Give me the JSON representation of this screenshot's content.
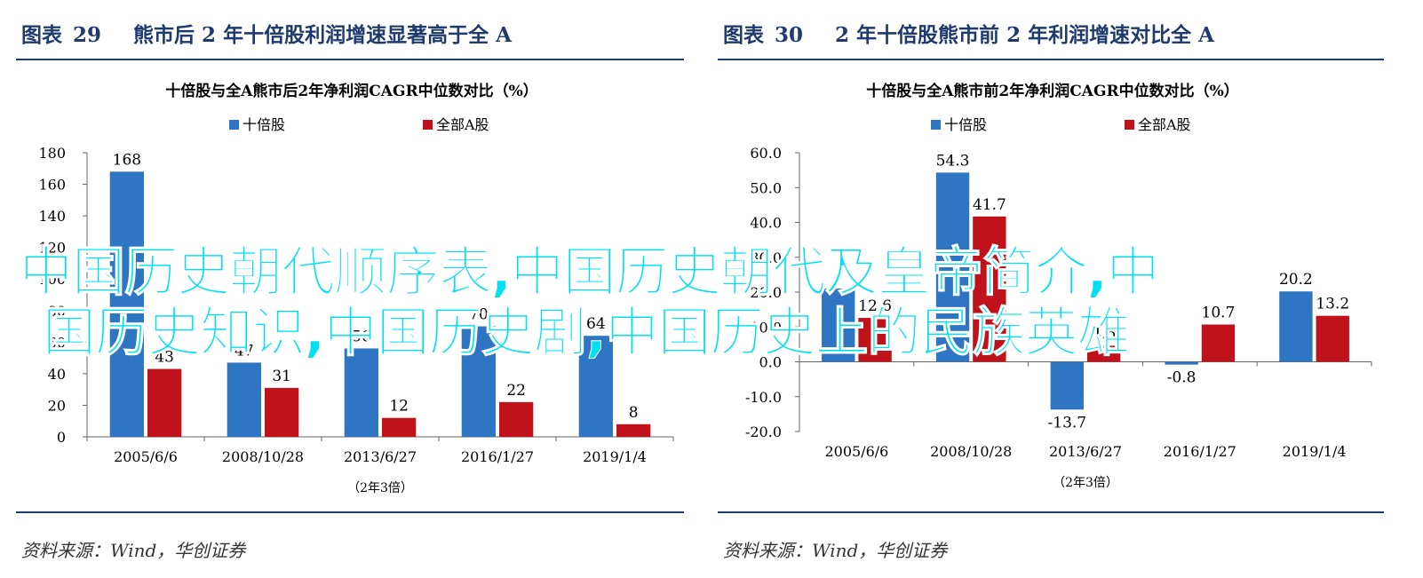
{
  "panels": [
    {
      "fig_label": "图表",
      "fig_number": "29",
      "fig_title": "熊市后 2 年十倍股利润增速显著高于全 A",
      "source": "资料来源：Wind，华创证券"
    },
    {
      "fig_label": "图表",
      "fig_number": "30",
      "fig_title": "2 年十倍股熊市前 2 年利润增速对比全 A",
      "source": "资料来源：Wind，华创证券"
    }
  ],
  "watermark": {
    "line1": "中国历史朝代顺序表,中国历史朝代及皇帝简介,中",
    "line2": "国历史知识,中国历史剧,中国历史上的民族英雄",
    "color": "#00e0f0"
  },
  "colors": {
    "series_a": "#2e75c3",
    "series_b": "#c0121b",
    "heading": "#1f3a6e"
  },
  "chart_data": [
    {
      "type": "bar",
      "title": "十倍股与全A熊市后2年净利润CAGR中位数对比（%）",
      "categories": [
        "2005/6/6",
        "2008/10/28",
        "2013/6/27",
        "2016/1/27",
        "2019/1/4"
      ],
      "xlabel": "（2年3倍）",
      "series": [
        {
          "name": "十倍股",
          "values": [
            168,
            47,
            56,
            70,
            64
          ],
          "labels": [
            "168",
            "47",
            "56",
            "70",
            "64"
          ]
        },
        {
          "name": "全部A股",
          "values": [
            43,
            31,
            12,
            22,
            8
          ],
          "labels": [
            "43",
            "31",
            "12",
            "22",
            "8"
          ]
        }
      ],
      "ylim": [
        0,
        180
      ],
      "yticks": [
        0,
        20,
        40,
        60,
        80,
        100,
        120,
        140,
        160,
        180
      ],
      "ytick_labels": [
        "0",
        "20",
        "40",
        "60",
        "80",
        "100",
        "120",
        "140",
        "160",
        "180"
      ],
      "legend": "top-center",
      "grid": false
    },
    {
      "type": "bar",
      "title": "十倍股与全A熊市前2年净利润CAGR中位数对比（%）",
      "categories": [
        "2005/6/6",
        "2008/10/28",
        "2013/6/27",
        "2016/1/27",
        "2019/1/4"
      ],
      "xlabel": "（2年3倍）",
      "series": [
        {
          "name": "十倍股",
          "values": [
            21.0,
            54.3,
            -13.7,
            -0.8,
            20.2
          ],
          "labels": [
            "",
            "54.3",
            "-13.7",
            "-0.8",
            "20.2"
          ]
        },
        {
          "name": "全部A股",
          "values": [
            12.6,
            41.7,
            4.6,
            10.7,
            13.2
          ],
          "labels": [
            "12.6",
            "41.7",
            "4.6",
            "10.7",
            "13.2"
          ]
        }
      ],
      "ylim": [
        -20,
        60
      ],
      "yticks": [
        -20,
        -10,
        0,
        10,
        20,
        30,
        40,
        50,
        60
      ],
      "ytick_labels": [
        "-20.0",
        "-10.0",
        "0.0",
        "10.0",
        "20.0",
        "30.0",
        "40.0",
        "50.0",
        "60.0"
      ],
      "legend": "top-center",
      "grid": false
    }
  ]
}
